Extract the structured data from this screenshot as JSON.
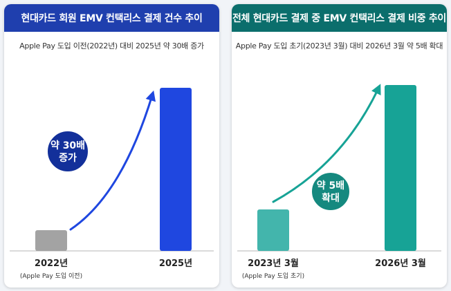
{
  "chart_data": [
    {
      "type": "bar",
      "title": "현대카드 회원 EMV 컨택리스 결제 건수 추이",
      "subtitle": "Apple Pay 도입 이전(2022년) 대비 2025년 약 30배 증가",
      "categories": [
        "2022년",
        "2025년"
      ],
      "category_notes": [
        "(Apple Pay 도입 이전)",
        ""
      ],
      "values": [
        1,
        30
      ],
      "annotation_lines": [
        "약 30배",
        "증가"
      ],
      "colors": {
        "header": "#1f3fae",
        "bars": [
          "#a3a3a3",
          "#1f47e0"
        ],
        "arrow": "#1f47e0",
        "badge": "#13309a"
      },
      "axes": "hidden",
      "grid": false
    },
    {
      "type": "bar",
      "title": "전체 현대카드 결제 중 EMV 컨택리스 결제 비중 추이",
      "subtitle": "Apple Pay 도입 초기(2023년 3월) 대비 2026년 3월 약 5배 확대",
      "categories": [
        "2023년 3월",
        "2026년 3월"
      ],
      "category_notes": [
        "(Apple Pay 도입 초기)",
        ""
      ],
      "values": [
        1,
        5
      ],
      "annotation_lines": [
        "약 5배",
        "확대"
      ],
      "colors": {
        "header": "#0b6e6c",
        "bars": [
          "#43b5ac",
          "#17a396"
        ],
        "arrow": "#17a396",
        "badge": "#15897f"
      },
      "axes": "hidden",
      "grid": false
    }
  ]
}
